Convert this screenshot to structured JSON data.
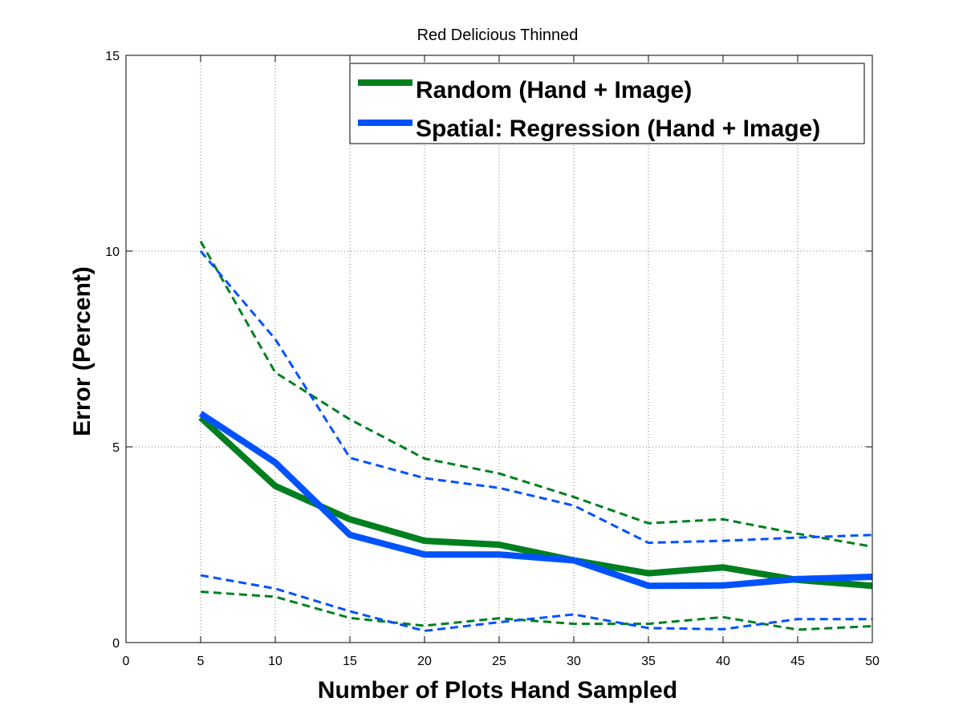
{
  "chart_data": {
    "type": "line",
    "title": "Red Delicious Thinned",
    "xlabel": "Number of Plots Hand Sampled",
    "ylabel": "Error (Percent)",
    "xlim": [
      0,
      50
    ],
    "ylim": [
      0,
      15
    ],
    "xticks": [
      0,
      5,
      10,
      15,
      20,
      25,
      30,
      35,
      40,
      45,
      50
    ],
    "yticks": [
      0,
      5,
      10,
      15
    ],
    "grid": true,
    "legend_position": "top-right",
    "x": [
      5,
      10,
      15,
      20,
      25,
      30,
      35,
      40,
      45,
      50
    ],
    "series": [
      {
        "name": "Random (Hand + Image)",
        "color": "#007f1f",
        "style": "solid",
        "values": [
          5.75,
          4.0,
          3.15,
          2.6,
          2.5,
          2.1,
          1.77,
          1.92,
          1.6,
          1.45
        ]
      },
      {
        "name": "Spatial: Regression (Hand + Image)",
        "color": "#0052ff",
        "style": "solid",
        "values": [
          5.85,
          4.6,
          2.75,
          2.25,
          2.25,
          2.1,
          1.45,
          1.46,
          1.62,
          1.68
        ]
      },
      {
        "color": "#007f1f",
        "style": "dashed",
        "values": [
          10.25,
          6.9,
          5.7,
          4.7,
          4.32,
          3.72,
          3.05,
          3.15,
          2.78,
          2.45
        ]
      },
      {
        "color": "#007f1f",
        "style": "dashed",
        "values": [
          1.3,
          1.17,
          0.63,
          0.43,
          0.62,
          0.48,
          0.48,
          0.65,
          0.33,
          0.42
        ]
      },
      {
        "color": "#0052ff",
        "style": "dashed",
        "values": [
          10.0,
          7.75,
          4.72,
          4.2,
          3.95,
          3.5,
          2.55,
          2.6,
          2.68,
          2.75
        ]
      },
      {
        "color": "#0052ff",
        "style": "dashed",
        "values": [
          1.72,
          1.38,
          0.8,
          0.3,
          0.52,
          0.72,
          0.37,
          0.34,
          0.6,
          0.6
        ]
      }
    ]
  }
}
